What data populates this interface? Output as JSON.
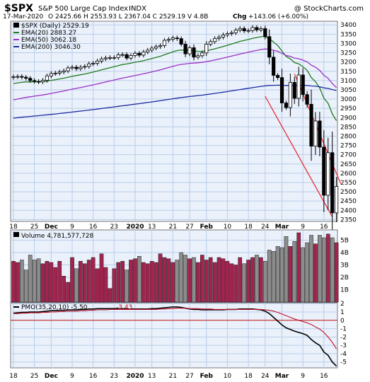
{
  "header": {
    "symbol": "$SPX",
    "name": "S&P 500 Large Cap Index",
    "exchange": "INDX",
    "watermark": "@ StockCharts.com",
    "date": "17-Mar-2020",
    "ohlc_text": "O 2425.66  H 2553.93  L 2367.04  C 2529.19  V 4.8B",
    "chg_label": "Chg",
    "chg_value": "+143.06 (+6.00%)",
    "chg_arrow": "▲"
  },
  "colors": {
    "panel_bg": "#eaf1fb",
    "grid": "#b9cde8",
    "up_candle": "#ffffff",
    "down_candle": "#000000",
    "ema20": "#1f7a1f",
    "ema50": "#9b2fc6",
    "ema200": "#1c2aa0",
    "channel": "#e8202a",
    "vol_down": "#8c8c8c",
    "vol_up": "#a3234f",
    "pmo": "#000000",
    "pmo_signal": "#c0102a",
    "zero_line": "#c01010"
  },
  "chart_data": [
    {
      "type": "candlestick",
      "title": "$SPX (Daily) 2529.19",
      "x_tick_labels": [
        "18",
        "25",
        "Dec",
        "9",
        "16",
        "23",
        "2020",
        "13",
        "21",
        "27",
        "Feb",
        "10",
        "18",
        "24",
        "Mar",
        "9",
        "16"
      ],
      "y_ticks": [
        2350,
        2400,
        2450,
        2500,
        2550,
        2600,
        2650,
        2700,
        2750,
        2800,
        2850,
        2900,
        2950,
        3000,
        3050,
        3100,
        3150,
        3200,
        3250,
        3300,
        3350,
        3400
      ],
      "ylim": [
        2340,
        3420
      ],
      "grid": true,
      "legend_position": "top-left",
      "legend": [
        {
          "name": "$SPX (Daily) 2529.19",
          "color_key": "down_candle"
        },
        {
          "name": "EMA(20) 2883.27",
          "color_key": "ema20"
        },
        {
          "name": "EMA(50) 3062.18",
          "color_key": "ema50"
        },
        {
          "name": "EMA(200) 3046.30",
          "color_key": "ema200"
        }
      ],
      "close": [
        3120,
        3122,
        3118,
        3112,
        3100,
        3095,
        3093,
        3101,
        3125,
        3138,
        3140,
        3146,
        3152,
        3168,
        3172,
        3164,
        3172,
        3176,
        3190,
        3193,
        3205,
        3217,
        3222,
        3224,
        3224,
        3239,
        3240,
        3221,
        3235,
        3247,
        3237,
        3254,
        3264,
        3275,
        3283,
        3288,
        3317,
        3322,
        3330,
        3326,
        3296,
        3244,
        3277,
        3226,
        3234,
        3249,
        3296,
        3310,
        3327,
        3334,
        3346,
        3353,
        3358,
        3372,
        3381,
        3368,
        3370,
        3386,
        3373,
        3380,
        3337,
        3226,
        3128,
        3116,
        2979,
        2954,
        3090,
        3004,
        3130,
        3024,
        2972,
        2746,
        2882,
        2741,
        2481,
        2711,
        2386,
        2529
      ],
      "ema20_end": 2883.27,
      "ema50_end": 3062.18,
      "ema200_end": 3046.3,
      "channel_upper": [
        [
          67,
          3135
        ],
        [
          78,
          2545
        ]
      ],
      "channel_lower": [
        [
          60,
          3015
        ],
        [
          76,
          2365
        ]
      ]
    },
    {
      "type": "bar",
      "title": "Volume 4,781,577,728",
      "y_tick_labels": [
        "1B",
        "2B",
        "3B",
        "4B",
        "5B"
      ],
      "ylim": [
        0,
        5.6
      ],
      "values_billions": [
        3.3,
        3.2,
        3.4,
        2.6,
        3.8,
        3.4,
        3.5,
        3.1,
        3.3,
        3.2,
        2.8,
        3.3,
        2.1,
        1.6,
        3.6,
        2.7,
        3.3,
        3.1,
        3.4,
        3.6,
        2.7,
        3.9,
        2.8,
        1.1,
        2.7,
        3.2,
        3.3,
        2.6,
        3.4,
        3.5,
        3.7,
        3.2,
        3.1,
        3.3,
        3.2,
        3.9,
        3.6,
        3.5,
        3.2,
        3.4,
        4.0,
        3.8,
        3.5,
        3.6,
        3.2,
        3.8,
        3.4,
        3.6,
        3.2,
        3.6,
        3.5,
        3.3,
        3.1,
        3.0,
        3.6,
        3.1,
        3.4,
        3.6,
        3.8,
        3.6,
        3.3,
        4.2,
        4.1,
        4.5,
        4.4,
        5.3,
        4.5,
        4.9,
        5.6,
        4.4,
        4.8,
        5.4,
        4.7,
        5.4,
        5.2,
        5.5,
        5.2,
        4.8
      ]
    },
    {
      "type": "line",
      "title": "PMO(35,20,10) -5.50, -3.43",
      "y_tick_labels": [
        "-5",
        "-4",
        "-3",
        "-2",
        "-1",
        "0",
        "1",
        "2"
      ],
      "ylim": [
        -5.7,
        2.1
      ],
      "series": [
        {
          "name": "PMO(35,20,10) -5.50",
          "color_key": "pmo",
          "values": [
            0.85,
            0.9,
            0.95,
            0.95,
            1.0,
            1.0,
            1.0,
            1.05,
            1.1,
            1.15,
            1.15,
            1.2,
            1.2,
            1.25,
            1.25,
            1.25,
            1.3,
            1.3,
            1.35,
            1.35,
            1.4,
            1.4,
            1.4,
            1.4,
            1.4,
            1.4,
            1.4,
            1.35,
            1.35,
            1.35,
            1.35,
            1.35,
            1.35,
            1.4,
            1.4,
            1.45,
            1.5,
            1.55,
            1.6,
            1.6,
            1.55,
            1.45,
            1.35,
            1.3,
            1.3,
            1.25,
            1.25,
            1.25,
            1.25,
            1.25,
            1.25,
            1.3,
            1.3,
            1.3,
            1.35,
            1.35,
            1.35,
            1.35,
            1.3,
            1.25,
            1.1,
            0.8,
            0.35,
            -0.1,
            -0.55,
            -0.9,
            -1.1,
            -1.3,
            -1.45,
            -1.6,
            -1.8,
            -2.3,
            -2.7,
            -3.0,
            -3.8,
            -4.2,
            -5.0,
            -5.5
          ]
        },
        {
          "name": "-3.43",
          "color_key": "pmo_signal",
          "values": [
            0.8,
            0.8,
            0.85,
            0.85,
            0.9,
            0.9,
            0.9,
            0.95,
            0.95,
            1.0,
            1.0,
            1.05,
            1.05,
            1.1,
            1.1,
            1.1,
            1.15,
            1.15,
            1.2,
            1.2,
            1.25,
            1.25,
            1.25,
            1.3,
            1.3,
            1.3,
            1.3,
            1.3,
            1.3,
            1.3,
            1.3,
            1.3,
            1.3,
            1.3,
            1.3,
            1.35,
            1.35,
            1.4,
            1.4,
            1.45,
            1.45,
            1.45,
            1.4,
            1.4,
            1.4,
            1.35,
            1.35,
            1.35,
            1.3,
            1.3,
            1.3,
            1.3,
            1.3,
            1.3,
            1.3,
            1.3,
            1.3,
            1.3,
            1.3,
            1.3,
            1.25,
            1.2,
            1.1,
            0.95,
            0.75,
            0.55,
            0.35,
            0.15,
            0.0,
            -0.15,
            -0.3,
            -0.5,
            -0.8,
            -1.05,
            -1.45,
            -2.0,
            -2.65,
            -3.43
          ]
        }
      ]
    }
  ]
}
